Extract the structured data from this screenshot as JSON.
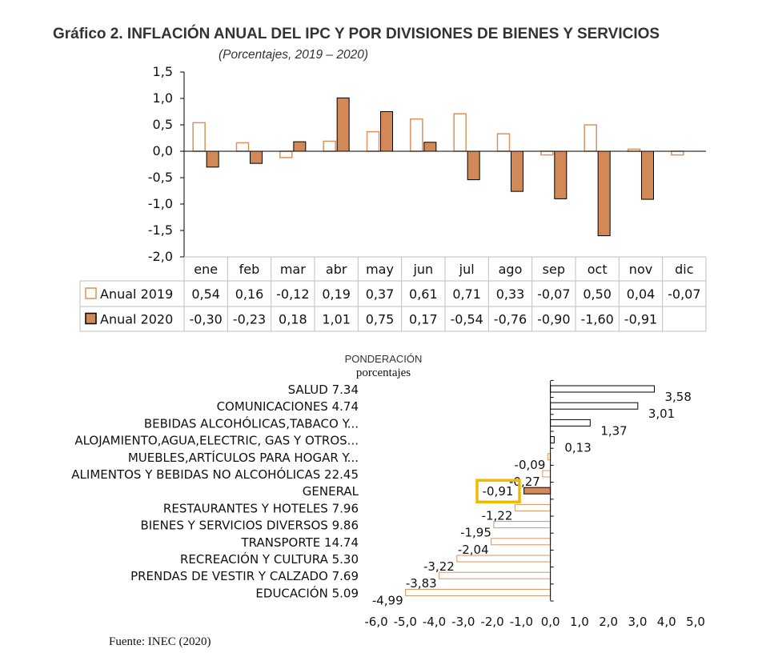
{
  "title": "Gráfico 2. INFLACIÓN ANUAL DEL IPC Y POR DIVISIONES DE BIENES Y SERVICIOS",
  "subtitle": "(Porcentajes, 2019 – 2020)",
  "source": "Fuente: INEC (2020)",
  "colors": {
    "series_2019_fill": "#ffffff",
    "series_2019_stroke": "#d8935c",
    "series_2020_fill": "#d18a57",
    "series_2020_stroke": "#000000",
    "highlight_box": "#f2b800",
    "bar_2020_general": "#d18a57"
  },
  "chart_data": [
    {
      "type": "bar",
      "categories": [
        "ene",
        "feb",
        "mar",
        "abr",
        "may",
        "jun",
        "jul",
        "ago",
        "sep",
        "oct",
        "nov",
        "dic"
      ],
      "series": [
        {
          "name": "Anual 2019",
          "values": [
            0.54,
            0.16,
            -0.12,
            0.19,
            0.37,
            0.61,
            0.71,
            0.33,
            -0.07,
            0.5,
            0.04,
            -0.07
          ],
          "labels": [
            "0,54",
            "0,16",
            "-0,12",
            "0,19",
            "0,37",
            "0,61",
            "0,71",
            "0,33",
            "-0,07",
            "0,50",
            "0,04",
            "-0,07"
          ]
        },
        {
          "name": "Anual 2020",
          "values": [
            -0.3,
            -0.23,
            0.18,
            1.01,
            0.75,
            0.17,
            -0.54,
            -0.76,
            -0.9,
            -1.6,
            -0.91,
            null
          ],
          "labels": [
            "-0,30",
            "-0,23",
            "0,18",
            "1,01",
            "0,75",
            "0,17",
            "-0,54",
            "-0,76",
            "-0,90",
            "-1,60",
            "-0,91",
            ""
          ]
        }
      ],
      "ylim": [
        -2.0,
        1.5
      ],
      "yticks": [
        "-2,0",
        "-1,5",
        "-1,0",
        "-0,5",
        "0,0",
        "0,5",
        "1,0",
        "1,5"
      ],
      "data_table": true,
      "grid": false
    },
    {
      "type": "bar",
      "orientation": "horizontal",
      "header": "PONDERACIÓN",
      "header_sub": "porcentajes",
      "categories": [
        "SALUD 7.34",
        "COMUNICACIONES 4.74",
        "BEBIDAS ALCOHÓLICAS,TABACO Y...",
        "ALOJAMIENTO,AGUA,ELECTRIC, GAS Y OTROS...",
        "MUEBLES,ARTÍCULOS PARA HOGAR Y...",
        "ALIMENTOS Y BEBIDAS NO ALCOHÓLICAS 22.45",
        "GENERAL",
        "RESTAURANTES Y HOTELES 7.96",
        "BIENES Y SERVICIOS DIVERSOS 9.86",
        "TRANSPORTE 14.74",
        "RECREACIÓN Y CULTURA 5.30",
        "PRENDAS DE VESTIR Y CALZADO 7.69",
        "EDUCACIÓN 5.09"
      ],
      "values": [
        3.58,
        3.01,
        1.37,
        0.13,
        -0.09,
        -0.27,
        -0.91,
        -1.22,
        -1.95,
        -2.04,
        -3.22,
        -3.83,
        -4.99
      ],
      "labels": [
        "3,58",
        "3,01",
        "1,37",
        "0,13",
        "-0,09",
        "-0,27",
        "-0,91",
        "-1,22",
        "-1,95",
        "-2,04",
        "-3,22",
        "-3,83",
        "-4,99"
      ],
      "highlighted": "GENERAL",
      "xlim": [
        -6.0,
        5.0
      ],
      "xticks": [
        "-6,0",
        "-5,0",
        "-4,0",
        "-3,0",
        "-2,0",
        "-1,0",
        "0,0",
        "1,0",
        "2,0",
        "3,0",
        "4,0",
        "5,0"
      ],
      "grid": false
    }
  ]
}
